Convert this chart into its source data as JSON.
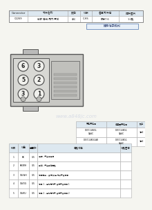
{
  "bg_color": "#f5f5f0",
  "header_table": {
    "columns": [
      "Connector",
      "零件名称",
      "路向",
      "线束",
      "备品零件号",
      "插件图片"
    ],
    "row": [
      "C2269",
      "前部 电动 尾门 开关",
      "（前）",
      "C-HS",
      "部分7.6",
      "1-2路"
    ]
  },
  "connector_label": "插件端子排列",
  "pin_positions": [
    {
      "num": "6",
      "col": 0,
      "row": 0
    },
    {
      "num": "3",
      "col": 1,
      "row": 0
    },
    {
      "num": "5",
      "col": 0,
      "row": 1
    },
    {
      "num": "2",
      "col": 1,
      "row": 1
    },
    {
      "num": "3",
      "col": 0,
      "row": 2
    },
    {
      "num": "1",
      "col": 1,
      "row": 2
    }
  ],
  "ref_table": {
    "headers": [
      "零件零件号",
      "插接器零件号",
      "路向"
    ],
    "rows": [
      [
        "DU5T-14A74-",
        "DU5T-14A74-",
        ""
      ],
      [
        "DA#C",
        "DA#C",
        "3蘄4"
      ],
      [
        "DU5T-14A74-AB",
        "DU5T-14A74-",
        ""
      ],
      [
        "",
        "DA#C",
        "3蘄4"
      ]
    ]
  },
  "pin_table": {
    "col_headers": [
      "针脚",
      "线色",
      "截面积",
      "电路功能",
      "线路图号"
    ],
    "rows": [
      [
        "1",
        "BK",
        "0.5",
        "电源 - 开关供电源",
        ""
      ],
      [
        "2",
        "BK/WH",
        "0.5",
        "接地 - 开关接地回路",
        ""
      ],
      [
        "3",
        "GN/WH",
        "0.5",
        "信号输出 - 关闭/锁定 门锁开关信号",
        ""
      ],
      [
        "4",
        "GN/OG",
        "0.5",
        "信号 1 - 电动尾门开 关闭开关信号 1",
        ""
      ],
      [
        "5",
        "GN/BU",
        "0.5",
        "信号 2 - 电动尾门开 关闭开关信号 2",
        ""
      ]
    ]
  },
  "watermark": "www.a848jc.com",
  "table_border": "#aaaaaa",
  "header_bg": "#dde8f0",
  "connector_bg": "#d0d0cc",
  "pin_bg": "#eeeeee"
}
